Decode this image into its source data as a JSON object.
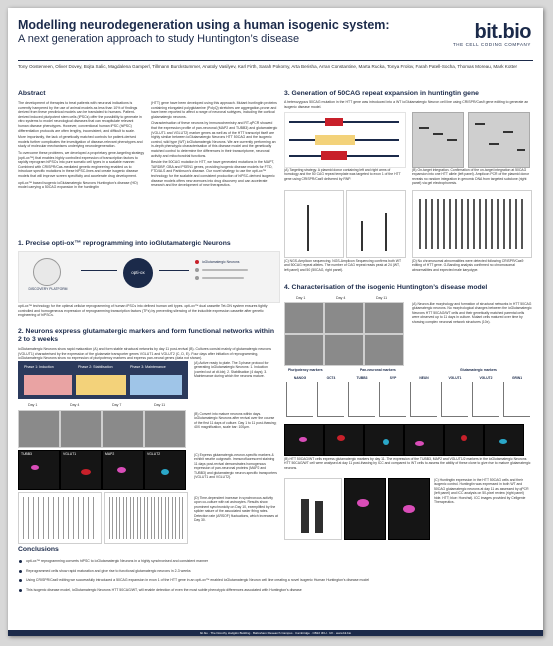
{
  "header": {
    "title": "Modelling neurodegeneration using a human isogenic system:",
    "subtitle": "A next generation approach to study Huntington’s disease",
    "logo_text": "bit.bio",
    "logo_tagline": "THE CELL CODING COMPANY",
    "authors": "Tony Oosterveen, Oliver Dovey, Bojta Salic, Magdalena Gamperl, Tillmann Burckstummer, Anatoly Vasilyev, Karl Firth, Sarah Pokorny, Arta Berisha, Arran Constantine, Marta Rucka, Tonya Frolov, Farah Patell-Socha, Thomas Moreau, Mark Kotter"
  },
  "abstract": {
    "heading": "Abstract",
    "p1": "The development of therapies to treat patients with neuronal indications is currently hampered by the use of animal models as less than 10% of findings derived from these preclinical models can be translated to humans. Patient-derived induced pluripotent stem cells (iPSCs) offer the possibility to generate in vitro systems to model neurological diseases that can recapitulate relevant human disease phenotypes. However, conventional human iPSC (hiPSC) differentiation protocols are often lengthy, inconsistent, and difficult to scale.",
    "p2": "More importantly, the lack of genetically matched controls for patient-derived models further complicates the investigation of disease-relevant phenotypes and study of molecular mechanisms underlying neurodegeneration.",
    "p3": "To overcome these problems, we developed a proprietary gene-targeting strategy (opti-ox™) that enables highly controlled expression of transcription factors to rapidly reprogram hiPSCs into pure somatic cell types in a scalable manner. Combined with CRISPR/Cas-mediated genetic engineering enabled us to introduce specific mutations in these hiPSC-lines and create isogenic disease models that will improve screen specificity and accelerate drug development.",
    "p4": "opti-ox™ based isogenic ioGlutamatergic Neurons Huntington’s disease (HD) model carrying a 50CAG expansion in the huntingtin",
    "p5": "(HTT) gene have been developed using this approach. Mutant huntingtin proteins containing elongated polyglutamine (PolyQ) stretches are aggregation-prone and have been reported to affect a range of neuronal subtypes, including the cortical glutamatergic neurons.",
    "p6": "Characterisation of these neurons by immunochemistry and RT-qPCR showed that the expression profile of pan-neuronal (MAP2 and TUBB3) and glutamatergic (VGLUT1 and VGLUT2) marker genes as well as of the HTT transcript itself are highly similar between ioGlutamatergic Neurons HTT 50CAG and the isogenic control, wild type (WT) ioGlutamatergic Neurons. We are currently performing an in-depth phenotypic characterisation of this disease model and the genetically matched control to determine the differences in their transcriptome, neuronal activity and mitochondrial functions.",
    "p7": "Beside the 50CAG mutation in HTT, we have generated mutations in the MAPT, TARDBP, GBA and PSEN1 genes, providing isogenic disease models for FTD, FTD/ALS and Parkinson’s disease. Our novel strategy to use the opti-ox™ technology for the scalable and consistent production of hiPSC-derived isogenic disease models offers new avenues into drug discovery and can accelerate research and the development of new therapeutics."
  },
  "section1": {
    "heading": "1. Precise opti-ox™ reprogramming into ioGlutamatergic Neurons",
    "diagram_left_label": "DISCOVERY PLATFORM",
    "diagram_center_label": "opti-ox",
    "diagram_right_label": "ioGlutamatergic Neurons",
    "text": "opti-ox™ technology for the optimal cellular reprogramming of human iPSCs into defined human cell types. opti-ox™ dual cassette Tet-ON system ensures tightly controlled and homogeneous expression of reprogramming transcription factors (TFs) by preventing silencing of the inducible expression cassette after genetic engineering of hiPSCs."
  },
  "section2": {
    "heading": "2. Neurons express glutamatergic markers and form functional networks within 2 to 3 weeks",
    "text": "ioGlutamatergic Neurons show rapid maturation (A) and form stable structural networks by day 11 post-revival (B). Cultures consist mainly of glutamatergic neurons (VGLUT1) characterised by the expression of the glutamate transporter genes VGLUT1 and VGLUT2 (C, D, E). Four days after initiation of reprogramming, ioGlutamatergic Neurons show no expression of pluripotency markers and express pan-neural genes (data not shown).",
    "phase1": "Phase 1: Induction",
    "phase2": "Phase 2: Stabilisation",
    "phase3": "Phase 3: Maintenance",
    "day_labels": [
      "Day 1",
      "Day 4",
      "Day 7",
      "Day 11"
    ],
    "stain_labels": [
      "TUBB3",
      "VGLUT1",
      "MAP2",
      "VGLUT2"
    ],
    "cap_a": "(A) Active ready to plate. The 3 phase protocol for generating ioGlutamatergic Neurons: 1. Induction (carried out at dt.Idx); 2. Stabilisation (4 days); 3. Maintenance during which the neurons mature.",
    "cap_b": "(B) Convert into mature neurons within days. ioGlutamatergic Neurons after revival over the course of the first 11 days of culture. Day 1 to 11 post-thawing; 40X magnification, scale bar: 100µm.",
    "cap_c": "(C) Express glutamatergic-neuron-specific markers & exhibit neurite outgrowth. Immunofluorescent staining 11 days post-revival demonstrates homogenous expression of pan-neuronal proteins (MAP2 and TUBB3) and glutamatergic neuron-specific transporters (VGLUT1 and VGLUT2).",
    "cap_d": "(D) Time-dependent increase in synchronous activity upon co-culture with rat astrocytes. Results show prominent synchronicity on Day 10, exemplified by the spikier nature of the associated raster firing rates. Detection rate (ARSOF) fluctuations, which increases at Day 30."
  },
  "section3": {
    "heading": "3. Generation of 50CAG repeat expansion in huntingtin gene",
    "intro": "A heterozygous 50CAG mutation in the HTT gene was introduced into a WT ioGlutamatergic Neuron cell line using CRISPR/Cas9 gene editing to generate an isogenic disease model.",
    "cap_a": "(A) Targeting strategy. A plasmid donor containing left and right arms of homology and the 50 CAG repeat template was targeted to exon 1 of the HTT gene using CRISPR/Cas9 delivered by RNP.",
    "cap_b": "(B) On-target integration. Confirmation of the on-target integration at 50CAG expansion into one HTT allele (left panel). Amplicon PCR of the plasmid donor reveals no random integration in genomic DNA from targeted subclone (right panel) via gel electrophoresis.",
    "cap_c": "(C) NGS-Amplicon sequencing. NGS-Amplicon Sequencing confirms both WT and 50CAG repeat alleles. The number of CAG repeat reads peak at 24 (WT, left panel) and 50 (50CAG, right panel).",
    "cap_d": "(D) No chromosomal abnormalities were detected following CRISPR/Cas9 editing of HTT gene. G-Banding analysis confirmed no chromosomal abnormalities and expected male karyotype."
  },
  "section4": {
    "heading": "4. Characterisation of the isogenic Huntington’s disease model",
    "day_labels": [
      "Day 1",
      "Day 4",
      "Day 11"
    ],
    "cap_a": "(A) Neuron-like morphology and formation of structural networks in HTT 50CAG glutamatergic neurons. No morphological changes between the ioGlutamatergic Neurons HTT 50CAG/WT cells and their genetically matched parental cells were observed up to 11 days in culture. Mutant cells matured over time by showing complex neuronal network structures (10x).",
    "chart_group_titles": [
      "Pluripotency markers",
      "Pan-neuronal markers",
      "Glutamatergic markers"
    ],
    "chart_titles": [
      "NANOG",
      "OCT4",
      "TUBB3",
      "SYP",
      "NEUN",
      "VGLUT1",
      "VGLUT2",
      "GRIN1"
    ],
    "cap_b": "(B) HTT 50CAG/WT cells express glutamatergic markers by day 11. The expression of the TUBB3, MAP2 and VGLUT1/2 markers in the ioGlutamatergic Neurons HTT 50CAG/WT cell were analysed at day 11 post-thawing by ICC and compared to WT cells to assess the ability of these clone to give rise to mature glutamatergic neurons.",
    "cap_c": "(C) Huntingtin expression in the HTT 50CAG cells and their isogenic control. Huntingtin was expressed in both WT and 50CAG glutamatergic neurons at day 11 as assessed by qPCR (left panel) and ICC analysis on 50-pixel review (right panel) hide. HTT; blue: Hoechst). ICC images provided by Cellgenie Therapeutics."
  },
  "conclusions": {
    "heading": "Conclusions",
    "items": [
      "opti-ox™ reprogramming converts hiPSC to ioGlutamatergic Neurons in a highly synchronised and consistent manner",
      "Reprogrammed cells show rapid maturation and give rise to functional glutamatergic neurons in 2-3 weeks",
      "Using CRISPR/Cas9 editing we successfully introduced a 50CAG expansion in exon 1 of the HTT gene in an opti-ox™ enabled ioGlutamatergic Neuron cell line creating a novel isogenic Human Huntington’s disease model",
      "This isogenic disease model, ioGlutamatergic Neurons HTT 50CAG/WT, will enable detection of even the most subtle phenotypic differences associated with Huntington’s disease"
    ]
  },
  "footer": {
    "text": "bit.bio · The Dorothy Hodgkin Building · Babraham Research Campus · Cambridge · CB22 3FH · UK · www.bit.bio"
  },
  "colors": {
    "brand_navy": "#1b2a4a",
    "stain_magenta": "#d94db8",
    "stain_green": "#1f4d1f",
    "stain_red": "#c8202a",
    "stain_cyan": "#2aa7c8"
  }
}
